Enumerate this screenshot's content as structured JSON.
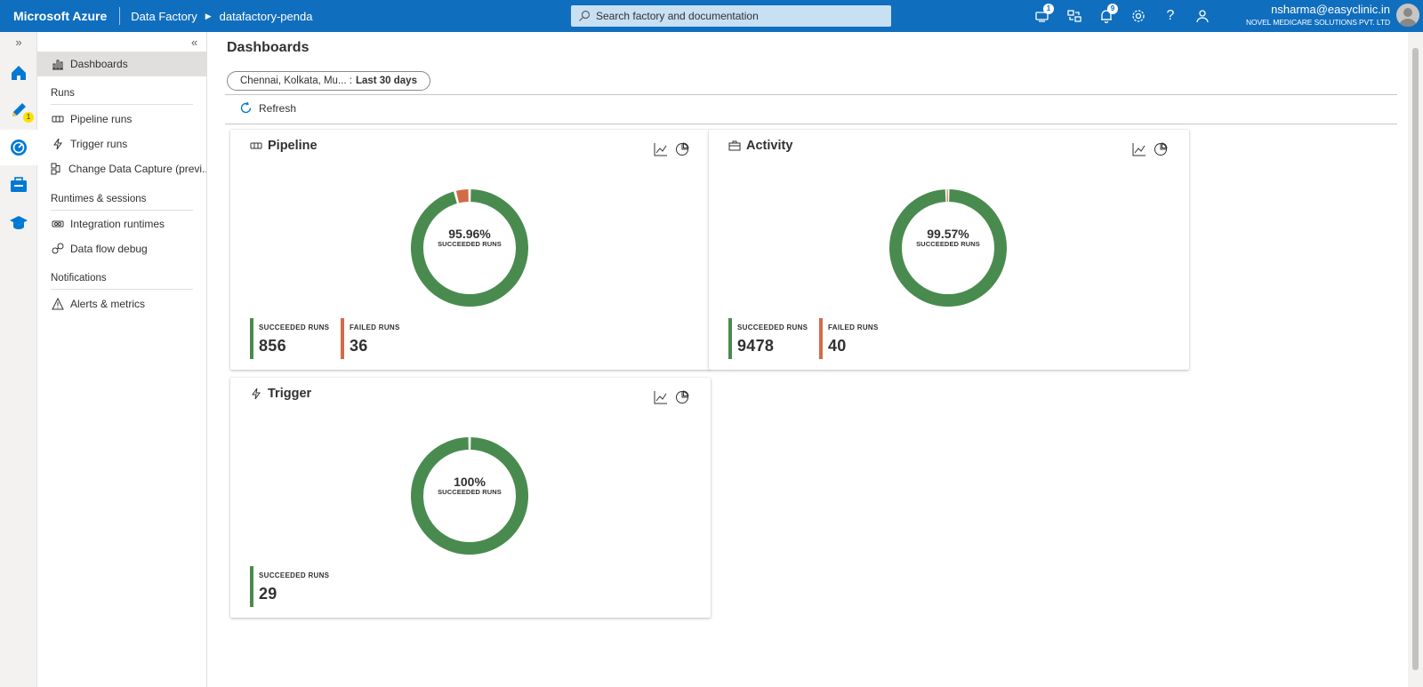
{
  "topbar": {
    "brand": "Microsoft Azure",
    "crumb1": "Data Factory",
    "crumb2": "datafactory-penda",
    "search_placeholder": "Search factory and documentation",
    "badge_updates": "1",
    "badge_notifications": "9",
    "user_email": "nsharma@easyclinic.in",
    "user_org": "NOVEL MEDICARE SOLUTIONS PVT. LTD"
  },
  "rail": {
    "author_badge": "1"
  },
  "sidebar": {
    "dashboards": "Dashboards",
    "runs_header": "Runs",
    "pipeline_runs": "Pipeline runs",
    "trigger_runs": "Trigger runs",
    "cdc": "Change Data Capture (previ...",
    "runtimes_header": "Runtimes & sessions",
    "integration_runtimes": "Integration runtimes",
    "data_flow_debug": "Data flow debug",
    "notifications_header": "Notifications",
    "alerts_metrics": "Alerts & metrics"
  },
  "main": {
    "title": "Dashboards",
    "filter_location": "Chennai, Kolkata, Mu... :",
    "filter_range": "Last 30 days",
    "refresh": "Refresh"
  },
  "cards": {
    "pipeline": {
      "title": "Pipeline",
      "pct": "95.96%",
      "center_label": "SUCCEEDED RUNS",
      "succeeded_label": "SUCCEEDED RUNS",
      "succeeded": "856",
      "failed_label": "FAILED RUNS",
      "failed": "36",
      "success_fraction": 0.9596
    },
    "activity": {
      "title": "Activity",
      "pct": "99.57%",
      "center_label": "SUCCEEDED RUNS",
      "succeeded_label": "SUCCEEDED RUNS",
      "succeeded": "9478",
      "failed_label": "FAILED RUNS",
      "failed": "40",
      "success_fraction": 0.9957
    },
    "trigger": {
      "title": "Trigger",
      "pct": "100%",
      "center_label": "SUCCEEDED RUNS",
      "succeeded_label": "SUCCEEDED RUNS",
      "succeeded": "29",
      "success_fraction": 1.0
    }
  },
  "colors": {
    "azure_blue": "#106ebe",
    "success": "#498b4f",
    "failed": "#d36b47"
  }
}
